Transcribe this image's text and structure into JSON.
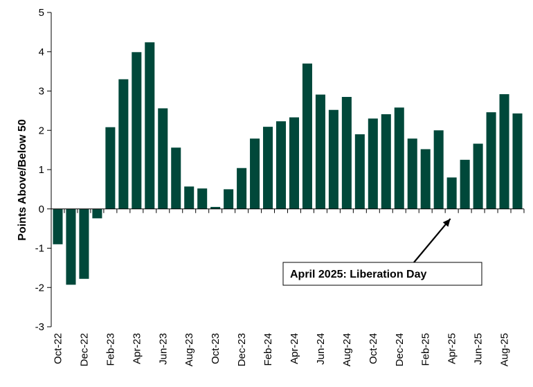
{
  "chart_data": {
    "type": "bar",
    "ylabel": "Points Above/Below 50",
    "ylim": [
      -3,
      5
    ],
    "yticks": [
      5,
      4,
      3,
      2,
      1,
      0,
      -1,
      -2,
      -3
    ],
    "grid": false,
    "bar_color": "#00483A",
    "categories": [
      "Oct-22",
      "Nov-22",
      "Dec-22",
      "Jan-23",
      "Feb-23",
      "Mar-23",
      "Apr-23",
      "May-23",
      "Jun-23",
      "Jul-23",
      "Aug-23",
      "Sep-23",
      "Oct-23",
      "Nov-23",
      "Dec-23",
      "Jan-24",
      "Feb-24",
      "Mar-24",
      "Apr-24",
      "May-24",
      "Jun-24",
      "Jul-24",
      "Aug-24",
      "Sep-24",
      "Oct-24",
      "Nov-24",
      "Dec-24",
      "Jan-25",
      "Feb-25",
      "Mar-25",
      "Apr-25",
      "May-25",
      "Jun-25",
      "Jul-25",
      "Aug-25",
      "Sep-25"
    ],
    "values": [
      -0.9,
      -1.93,
      -1.78,
      -0.24,
      2.08,
      3.3,
      3.99,
      4.24,
      2.56,
      1.56,
      0.57,
      0.52,
      0.05,
      0.5,
      1.04,
      1.79,
      2.09,
      2.23,
      2.33,
      3.7,
      2.91,
      2.52,
      2.85,
      1.9,
      2.3,
      2.41,
      2.58,
      1.79,
      1.52,
      2.0,
      0.8,
      1.25,
      1.66,
      2.46,
      2.92,
      2.43
    ],
    "xtick_labels": [
      "Oct-22",
      "Dec-22",
      "Feb-23",
      "Apr-23",
      "Jun-23",
      "Aug-23",
      "Oct-23",
      "Dec-23",
      "Feb-24",
      "Apr-24",
      "Jun-24",
      "Aug-24",
      "Oct-24",
      "Dec-24",
      "Feb-25",
      "Apr-25",
      "Jun-25",
      "Aug-25"
    ],
    "annotation": {
      "text": "April 2025: Liberation Day",
      "category": "Apr-25",
      "y": -0.25
    }
  }
}
